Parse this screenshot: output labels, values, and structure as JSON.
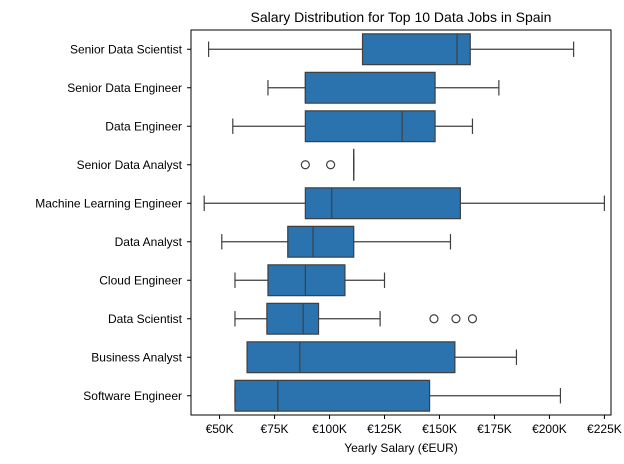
{
  "chart_data": {
    "type": "boxplot",
    "title": "Salary Distribution for Top 10 Data Jobs in Spain",
    "xlabel": "Yearly Salary (€EUR)",
    "ylabel": "",
    "xlim": [
      37000,
      228000
    ],
    "x_ticks": [
      50000,
      75000,
      100000,
      125000,
      150000,
      175000,
      200000,
      225000
    ],
    "x_tick_labels": [
      "€50K",
      "€75K",
      "€100K",
      "€125K",
      "€150K",
      "€175K",
      "€200K",
      "€225K"
    ],
    "grid": false,
    "box_color": "#2b73ae",
    "line_color": "#3f3f3f",
    "categories": [
      "Senior Data Scientist",
      "Senior Data Engineer",
      "Data Engineer",
      "Senior Data Analyst",
      "Machine Learning Engineer",
      "Data Analyst",
      "Cloud Engineer",
      "Data Scientist",
      "Business Analyst",
      "Software Engineer"
    ],
    "boxes": [
      {
        "whisker_low": 45000,
        "q1": 115000,
        "median": 158000,
        "q3": 164000,
        "whisker_high": 211000,
        "outliers": []
      },
      {
        "whisker_low": 72000,
        "q1": 89000,
        "median": 89000,
        "q3": 148000,
        "whisker_high": 177000,
        "outliers": []
      },
      {
        "whisker_low": 56000,
        "q1": 89000,
        "median": 133000,
        "q3": 148000,
        "whisker_high": 165000,
        "outliers": []
      },
      {
        "whisker_low": 111000,
        "q1": 111000,
        "median": 111000,
        "q3": 111000,
        "whisker_high": 111000,
        "outliers": [
          89000,
          100500
        ]
      },
      {
        "whisker_low": 43000,
        "q1": 89000,
        "median": 101000,
        "q3": 159500,
        "whisker_high": 225000,
        "outliers": []
      },
      {
        "whisker_low": 51000,
        "q1": 81000,
        "median": 92500,
        "q3": 111000,
        "whisker_high": 155000,
        "outliers": []
      },
      {
        "whisker_low": 57000,
        "q1": 72000,
        "median": 89000,
        "q3": 107000,
        "whisker_high": 125000,
        "outliers": []
      },
      {
        "whisker_low": 57000,
        "q1": 71500,
        "median": 88000,
        "q3": 95000,
        "whisker_high": 123000,
        "outliers": [
          147500,
          157500,
          165000
        ]
      },
      {
        "whisker_low": 62500,
        "q1": 62500,
        "median": 86500,
        "q3": 157000,
        "whisker_high": 185000,
        "outliers": []
      },
      {
        "whisker_low": 57000,
        "q1": 57000,
        "median": 76500,
        "q3": 145500,
        "whisker_high": 205000,
        "outliers": []
      }
    ]
  }
}
